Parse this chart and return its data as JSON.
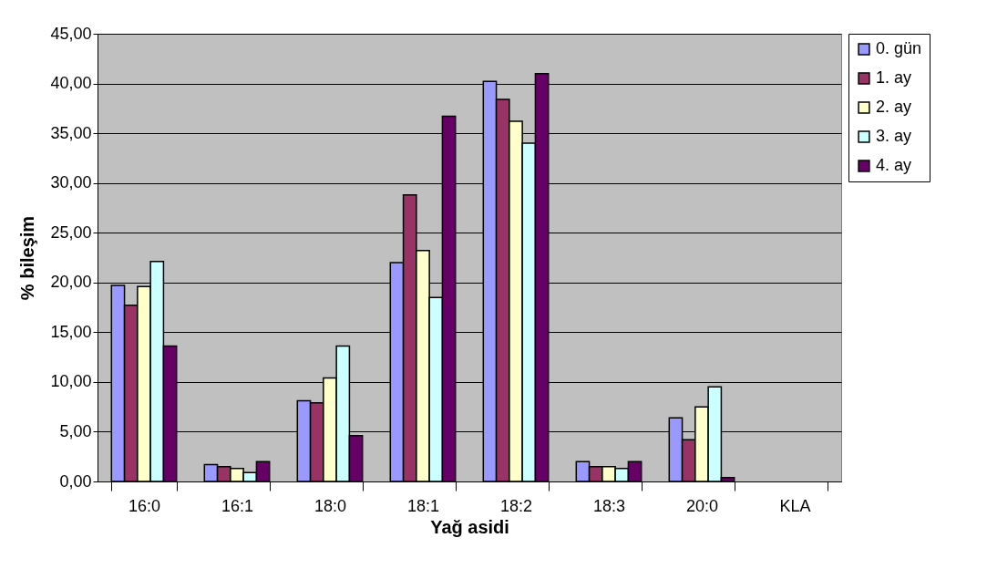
{
  "chart_data": {
    "type": "bar",
    "xlabel": "Yağ asidi",
    "ylabel": "% bileşim",
    "categories": [
      "16:0",
      "16:1",
      "18:0",
      "18:1",
      "18:2",
      "18:3",
      "20:0",
      "KLA"
    ],
    "series": [
      {
        "name": "0. gün",
        "color": "#9999ff",
        "values": [
          19.7,
          1.7,
          8.1,
          22.0,
          40.2,
          2.0,
          6.4,
          null
        ]
      },
      {
        "name": "1. ay",
        "color": "#993366",
        "values": [
          17.7,
          1.5,
          7.9,
          28.8,
          38.4,
          1.5,
          4.2,
          null
        ]
      },
      {
        "name": "2. ay",
        "color": "#ffffcc",
        "values": [
          19.6,
          1.3,
          10.4,
          23.2,
          36.2,
          1.5,
          7.5,
          null
        ]
      },
      {
        "name": "3. ay",
        "color": "#ccffff",
        "values": [
          22.1,
          0.9,
          13.6,
          18.5,
          34.0,
          1.3,
          9.5,
          null
        ]
      },
      {
        "name": "4. ay",
        "color": "#660066",
        "values": [
          13.6,
          2.0,
          4.6,
          36.7,
          41.0,
          2.0,
          0.4,
          null
        ]
      }
    ],
    "ylim": [
      0,
      45
    ],
    "yticks": [
      {
        "value": 0,
        "label": "0,00"
      },
      {
        "value": 5,
        "label": "5,00"
      },
      {
        "value": 10,
        "label": "10,00"
      },
      {
        "value": 15,
        "label": "15,00"
      },
      {
        "value": 20,
        "label": "20,00"
      },
      {
        "value": 25,
        "label": "25,00"
      },
      {
        "value": 30,
        "label": "30,00"
      },
      {
        "value": 35,
        "label": "35,00"
      },
      {
        "value": 40,
        "label": "40,00"
      },
      {
        "value": 45,
        "label": "45,00"
      }
    ],
    "grid": "y",
    "legend": "top right"
  }
}
